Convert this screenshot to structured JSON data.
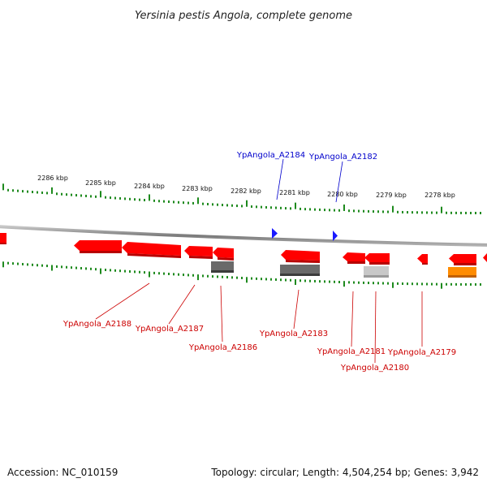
{
  "title": "Yersinia pestis Angola, complete genome",
  "footer": {
    "accession": "Accession: NC_010159",
    "summary": "Topology: circular; Length: 4,504,254 bp; Genes: 3,942"
  },
  "colors": {
    "backbone": "#8a8a8a",
    "tick": "#1e8a1e",
    "gene_red": "#ff0000",
    "gene_dark_grey": "#6a6a6a",
    "gene_light_grey": "#c8c8c8",
    "gene_orange": "#ff8c00",
    "gene_blue": "#1a1aff",
    "label_red": "#cc0000",
    "label_blue": "#0000cc"
  },
  "scale_labels": [
    "2286 kbp",
    "2285 kbp",
    "2284 kbp",
    "2283 kbp",
    "2282 kbp",
    "2281 kbp",
    "2280 kbp",
    "2279 kbp",
    "2278 kbp"
  ],
  "forward_genes": [
    {
      "id": "YpAngola_A2184",
      "label": "YpAngola_A2184"
    },
    {
      "id": "YpAngola_A2182",
      "label": "YpAngola_A2182"
    }
  ],
  "reverse_genes": [
    {
      "id": "YpAngola_A2188",
      "label": "YpAngola_A2188"
    },
    {
      "id": "YpAngola_A2187",
      "label": "YpAngola_A2187"
    },
    {
      "id": "YpAngola_A2186",
      "label": "YpAngola_A2186"
    },
    {
      "id": "YpAngola_A2183",
      "label": "YpAngola_A2183"
    },
    {
      "id": "YpAngola_A2181",
      "label": "YpAngola_A2181"
    },
    {
      "id": "YpAngola_A2180",
      "label": "YpAngola_A2180"
    },
    {
      "id": "YpAngola_A2179",
      "label": "YpAngola_A2179"
    }
  ]
}
